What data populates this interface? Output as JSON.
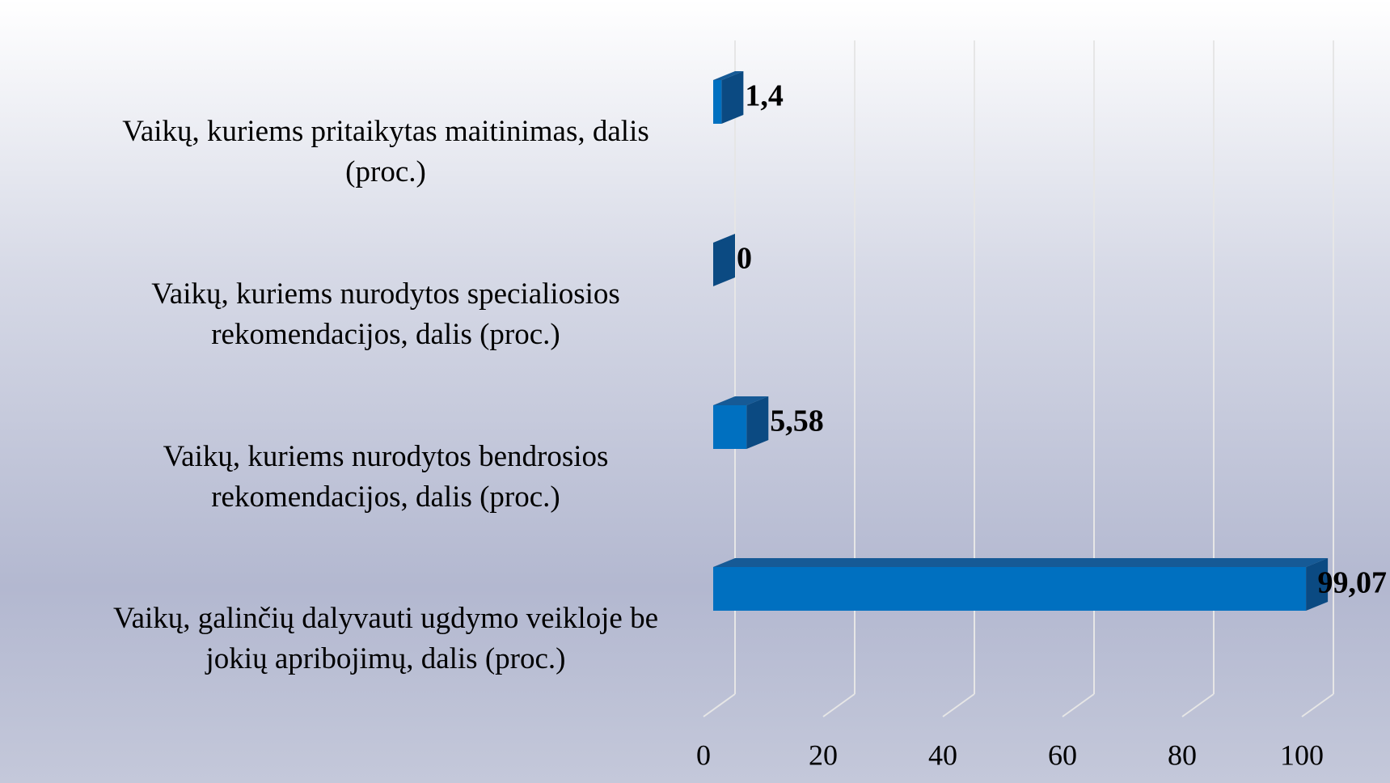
{
  "chart_data": {
    "type": "bar",
    "orientation": "horizontal",
    "three_d": true,
    "categories": [
      "Vaikų, kuriems pritaikytas maitinimas, dalis (proc.)",
      "Vaikų, kuriems nurodytos specialiosios rekomendacijos, dalis (proc.)",
      "Vaikų, kuriems nurodytos bendrosios rekomendacijos, dalis (proc.)",
      "Vaikų, galinčių dalyvauti ugdymo veikloje be jokių apribojimų, dalis (proc.)"
    ],
    "values": [
      1.4,
      0,
      5.58,
      99.07
    ],
    "value_labels": [
      "1,4",
      "0",
      "5,58",
      "99,07"
    ],
    "color": "#0070c0",
    "xlim": [
      0,
      100
    ],
    "xticks": [
      0,
      20,
      40,
      60,
      80,
      100
    ],
    "grid": true
  }
}
